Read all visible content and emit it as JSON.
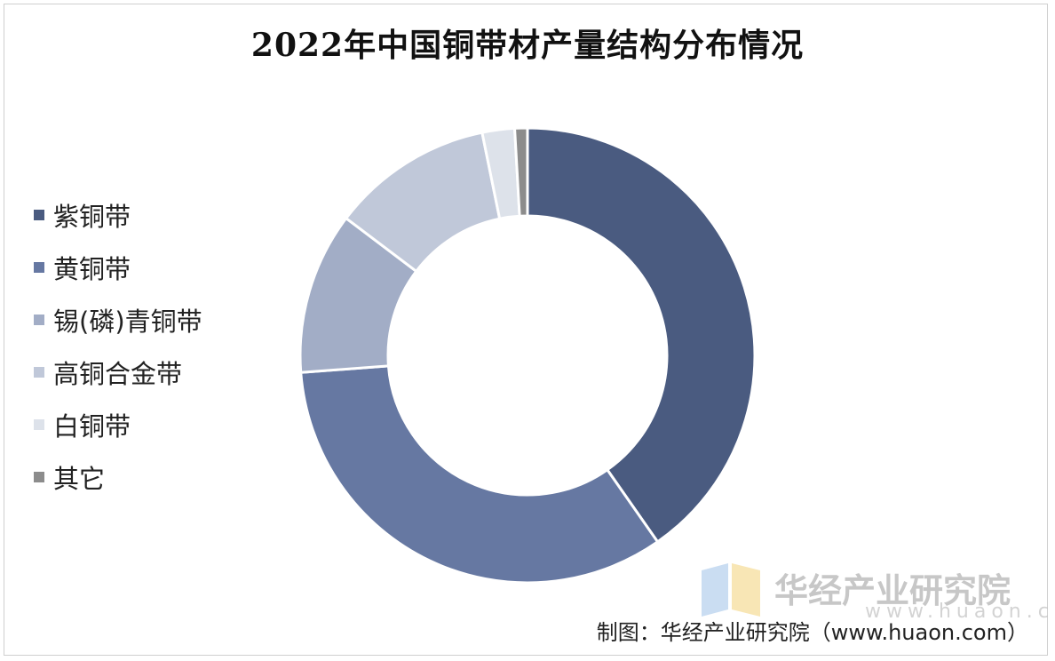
{
  "chart_data": {
    "type": "pie",
    "title": "2022年中国铜带材产量结构分布情况",
    "categories": [
      "紫铜带",
      "黄铜带",
      "锡(磷)青铜带",
      "高铜合金带",
      "白铜带",
      "其它"
    ],
    "values": [
      40.3,
      33.5,
      11.5,
      11.5,
      2.3,
      0.9
    ],
    "colors": [
      "#4a5b80",
      "#6678a2",
      "#a2adc6",
      "#c0c8d9",
      "#dde2ea",
      "#8c8c8c"
    ],
    "donut": true,
    "legend": "left"
  },
  "watermark": {
    "name": "华经产业研究院",
    "url": "www.huaon.com"
  },
  "source_note": "制图：华经产业研究院（www.huaon.com）"
}
